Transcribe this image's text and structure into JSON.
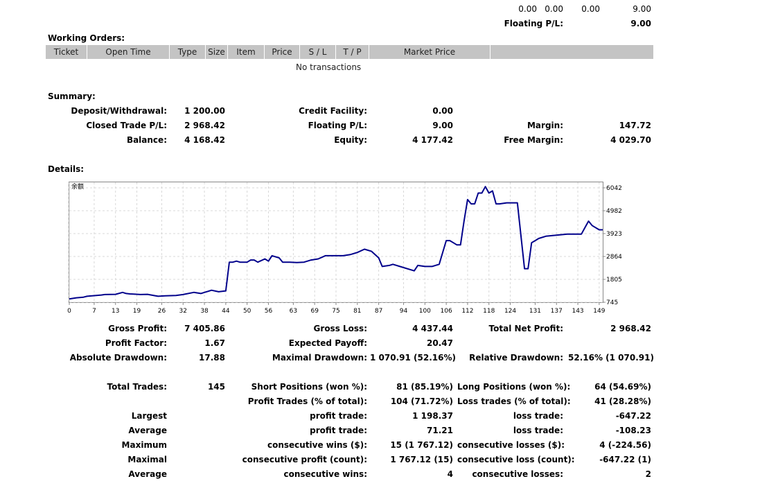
{
  "top_row": {
    "values": [
      "0.00",
      "0.00",
      "0.00",
      "9.00"
    ],
    "floating_label": "Floating P/L:",
    "floating_value": "9.00"
  },
  "working_orders": {
    "title": "Working Orders:",
    "headers": [
      "Ticket",
      "Open Time",
      "Type",
      "Size",
      "Item",
      "Price",
      "S / L",
      "T / P",
      "Market Price"
    ],
    "empty_text": "No transactions"
  },
  "summary": {
    "title": "Summary:",
    "rows": [
      [
        {
          "label": "Deposit/Withdrawal:",
          "value": "1 200.00"
        },
        {
          "label": "Credit Facility:",
          "value": "0.00"
        },
        {
          "label": "",
          "value": ""
        }
      ],
      [
        {
          "label": "Closed Trade P/L:",
          "value": "2 968.42"
        },
        {
          "label": "Floating P/L:",
          "value": "9.00"
        },
        {
          "label": "Margin:",
          "value": "147.72"
        }
      ],
      [
        {
          "label": "Balance:",
          "value": "4 168.42"
        },
        {
          "label": "Equity:",
          "value": "4 177.42"
        },
        {
          "label": "Free Margin:",
          "value": "4 029.70"
        }
      ]
    ]
  },
  "details": {
    "title": "Details:",
    "stats": [
      [
        {
          "label": "Gross Profit:",
          "value": "7 405.86"
        },
        {
          "label": "Gross Loss:",
          "value": "4 437.44"
        },
        {
          "label": "Total Net Profit:",
          "value": "2 968.42"
        }
      ],
      [
        {
          "label": "Profit Factor:",
          "value": "1.67"
        },
        {
          "label": "Expected Payoff:",
          "value": "20.47"
        },
        {
          "label": "",
          "value": ""
        }
      ],
      [
        {
          "label": "Absolute Drawdown:",
          "value": "17.88"
        },
        {
          "label": "Maximal Drawdown:",
          "value": "1 070.91 (52.16%)"
        },
        {
          "label": "Relative Drawdown:",
          "value": "52.16% (1 070.91)"
        }
      ],
      [
        {
          "label": "",
          "value": ""
        },
        {
          "label": "",
          "value": ""
        },
        {
          "label": "",
          "value": ""
        }
      ],
      [
        {
          "label": "Total Trades:",
          "value": "145"
        },
        {
          "label": "Short Positions (won %):",
          "value": "81 (85.19%)"
        },
        {
          "label": "Long Positions (won %):",
          "value": "64 (54.69%)"
        }
      ],
      [
        {
          "label": "",
          "value": ""
        },
        {
          "label": "Profit Trades (% of total):",
          "value": "104 (71.72%)"
        },
        {
          "label": "Loss trades (% of total):",
          "value": "41 (28.28%)"
        }
      ],
      [
        {
          "label": "Largest",
          "value": ""
        },
        {
          "label": "profit trade:",
          "value": "1 198.37"
        },
        {
          "label": "loss trade:",
          "value": "-647.22"
        }
      ],
      [
        {
          "label": "Average",
          "value": ""
        },
        {
          "label": "profit trade:",
          "value": "71.21"
        },
        {
          "label": "loss trade:",
          "value": "-108.23"
        }
      ],
      [
        {
          "label": "Maximum",
          "value": ""
        },
        {
          "label": "consecutive wins ($):",
          "value": "15 (1 767.12)"
        },
        {
          "label": "consecutive losses ($):",
          "value": "4 (-224.56)"
        }
      ],
      [
        {
          "label": "Maximal",
          "value": ""
        },
        {
          "label": "consecutive profit (count):",
          "value": "1 767.12 (15)"
        },
        {
          "label": "consecutive loss (count):",
          "value": "-647.22 (1)"
        }
      ],
      [
        {
          "label": "Average",
          "value": ""
        },
        {
          "label": "consecutive wins:",
          "value": "4"
        },
        {
          "label": "consecutive losses:",
          "value": "2"
        }
      ]
    ]
  },
  "chart_data": {
    "type": "line",
    "title": "余额",
    "x_ticks": [
      0,
      7,
      13,
      19,
      26,
      32,
      38,
      44,
      50,
      56,
      63,
      69,
      75,
      81,
      87,
      94,
      100,
      106,
      112,
      118,
      124,
      131,
      137,
      143,
      149
    ],
    "y_ticks": [
      745,
      1805,
      2864,
      3923,
      4982,
      6042
    ],
    "xlim": [
      0,
      150
    ],
    "ylim": [
      745,
      6042
    ],
    "grid": true,
    "line_color": "#00008b",
    "series": [
      {
        "x": [
          0,
          2,
          4,
          5,
          7,
          9,
          10,
          13,
          15,
          16,
          17,
          18,
          20,
          22,
          24,
          25,
          27,
          30,
          32,
          35,
          37,
          38,
          39,
          40,
          42,
          44,
          45,
          46,
          47,
          48,
          49,
          50,
          51,
          52,
          53,
          55,
          56,
          57,
          59,
          60,
          62,
          64,
          66,
          68,
          70,
          72,
          75,
          77,
          79,
          81,
          83,
          85,
          87,
          88,
          90,
          91,
          94,
          97,
          98,
          100,
          102,
          104,
          106,
          107,
          108,
          109,
          110,
          111,
          112,
          113,
          114,
          115,
          116,
          117,
          118,
          119,
          120,
          121,
          123,
          126,
          128,
          129,
          130,
          131,
          132,
          134,
          137,
          140,
          142,
          144,
          145,
          146,
          147,
          149,
          150
        ],
        "values": [
          900,
          950,
          980,
          1020,
          1050,
          1080,
          1100,
          1110,
          1200,
          1150,
          1130,
          1120,
          1100,
          1110,
          1050,
          1020,
          1040,
          1060,
          1100,
          1200,
          1150,
          1200,
          1250,
          1300,
          1230,
          1270,
          2600,
          2600,
          2650,
          2600,
          2600,
          2600,
          2700,
          2700,
          2600,
          2750,
          2650,
          2900,
          2800,
          2600,
          2600,
          2580,
          2600,
          2700,
          2750,
          2900,
          2900,
          2900,
          2950,
          3050,
          3200,
          3100,
          2800,
          2400,
          2450,
          2500,
          2350,
          2200,
          2450,
          2400,
          2400,
          2500,
          3600,
          3600,
          3500,
          3400,
          3400,
          4500,
          5500,
          5300,
          5300,
          5800,
          5800,
          6100,
          5800,
          5900,
          5300,
          5300,
          5350,
          5350,
          2300,
          2300,
          3500,
          3600,
          3700,
          3800,
          3850,
          3900,
          3900,
          3900,
          4200,
          4500,
          4300,
          4100,
          4100
        ]
      }
    ]
  }
}
